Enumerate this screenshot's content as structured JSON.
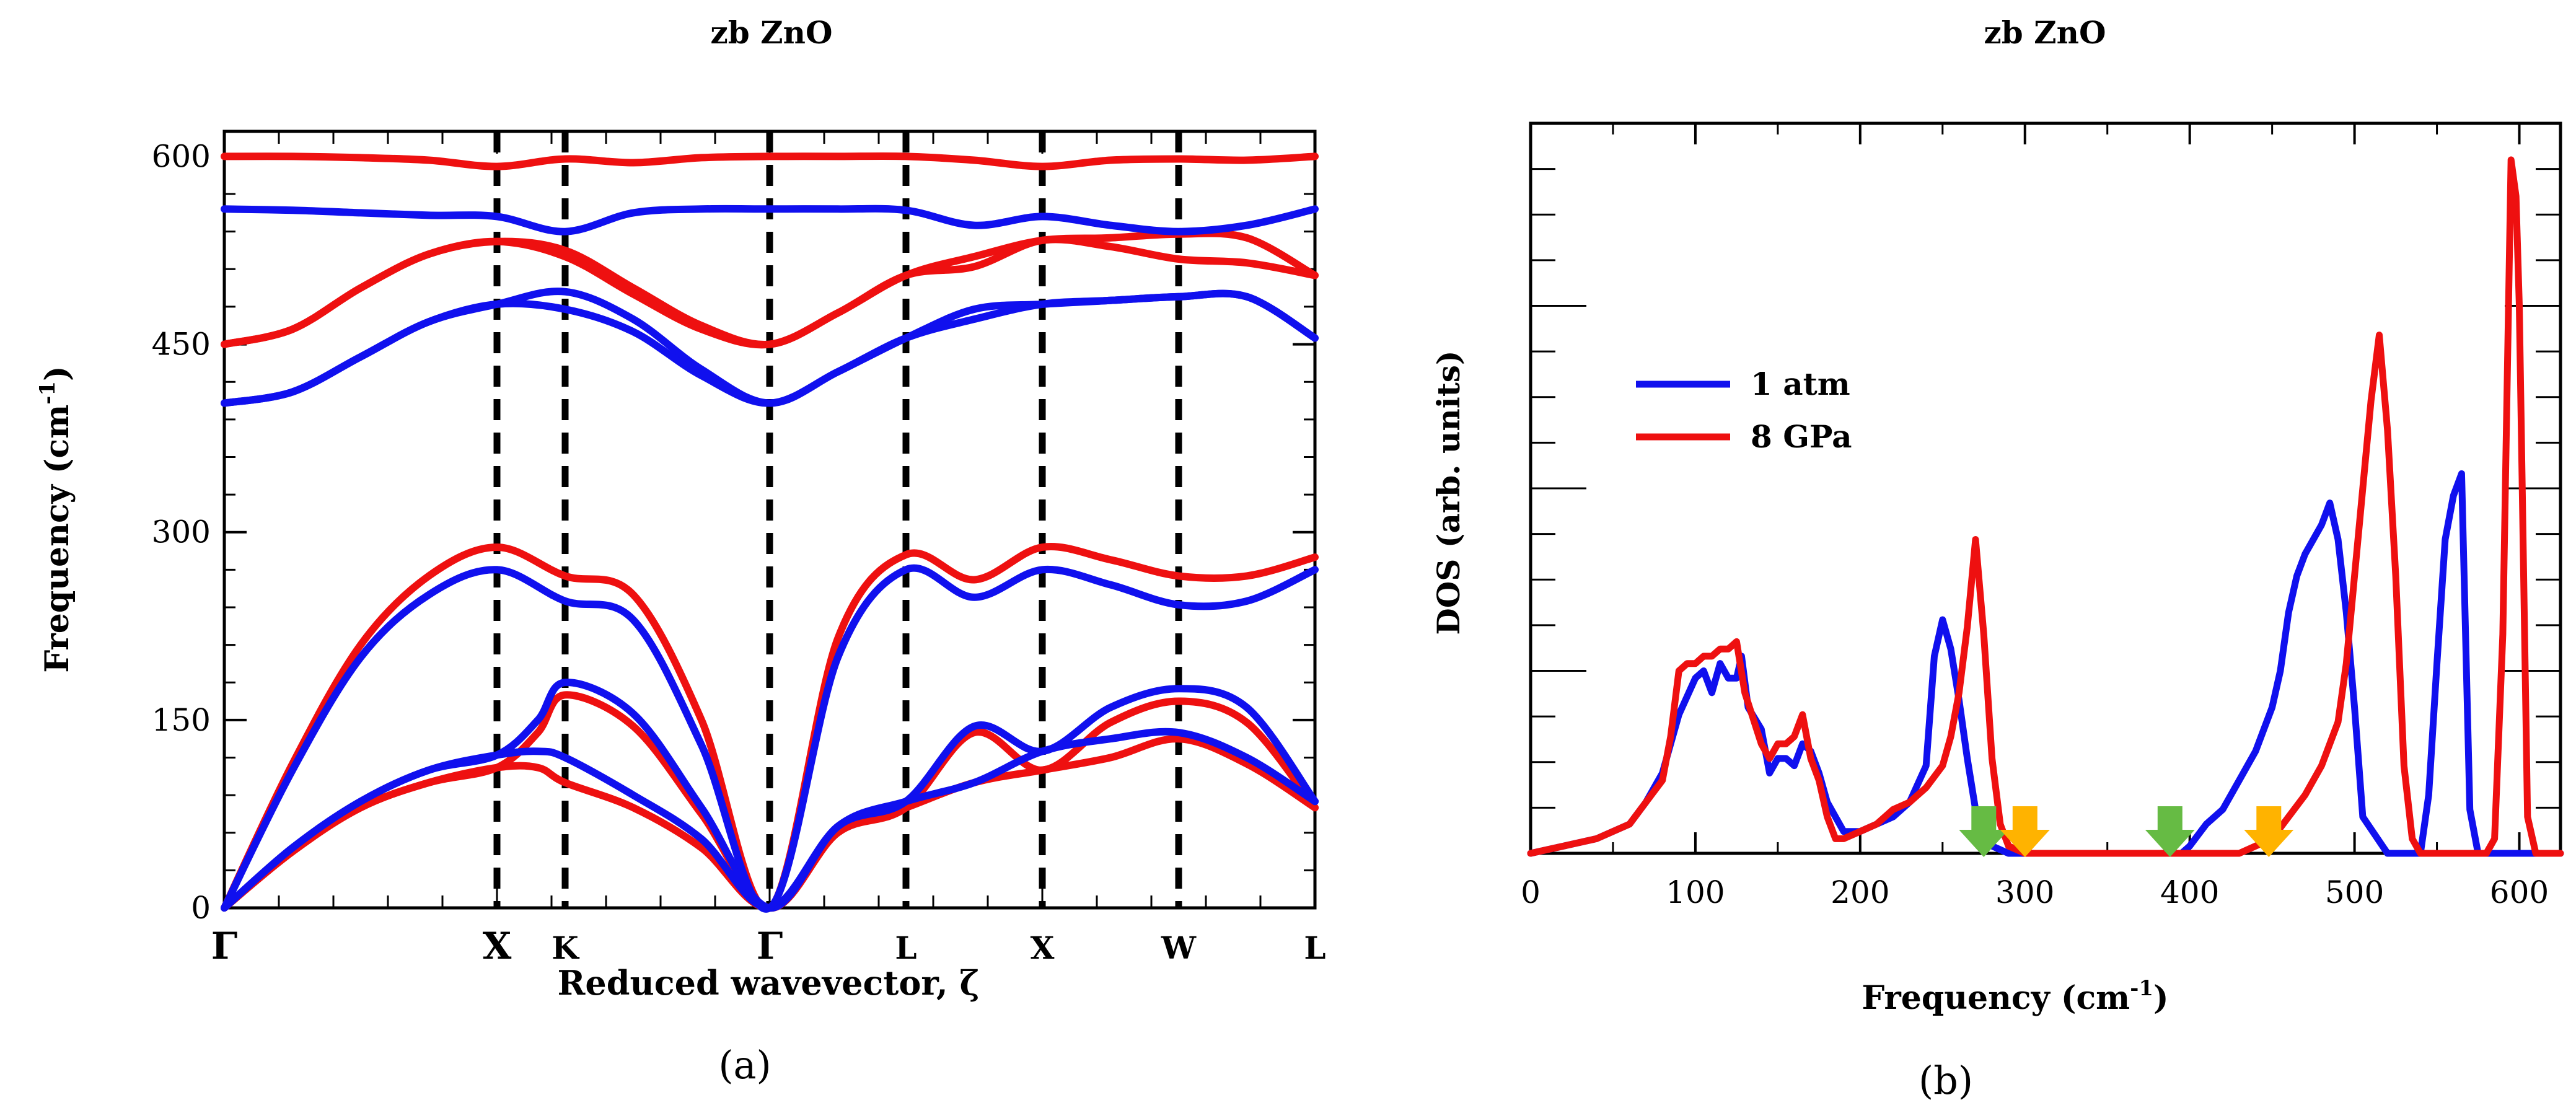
{
  "chart_data": [
    {
      "type": "line",
      "panel_label": "(a)",
      "title": "zb ZnO",
      "xlabel": "Reduced wavevector, ζ",
      "ylabel": "Frequency (cm",
      "ylabel_sup": "-1",
      "ylabel_close": ")",
      "ylim": [
        0,
        620
      ],
      "yticks": [
        {
          "v": 0,
          "label": "0"
        },
        {
          "v": 150,
          "label": "150"
        },
        {
          "v": 300,
          "label": "300"
        },
        {
          "v": 450,
          "label": "450"
        },
        {
          "v": 600,
          "label": "600"
        }
      ],
      "xlim": [
        0,
        8
      ],
      "high_symmetry_points": [
        {
          "label": "Γ",
          "x": 0,
          "dashed": false
        },
        {
          "label": "X",
          "x": 2.0,
          "dashed": true
        },
        {
          "label": "K",
          "x": 2.5,
          "dashed": true
        },
        {
          "label": "Γ",
          "x": 4.0,
          "dashed": true
        },
        {
          "label": "L",
          "x": 5.0,
          "dashed": true
        },
        {
          "label": "X",
          "x": 6.0,
          "dashed": true
        },
        {
          "label": "W",
          "x": 7.0,
          "dashed": true
        },
        {
          "label": "L",
          "x": 8.0,
          "dashed": false
        }
      ],
      "grid": false,
      "series": [
        {
          "name": "1 atm",
          "color": "#1010ee",
          "branches": [
            {
              "x": [
                0,
                0.5,
                1,
                1.5,
                2,
                2.3,
                2.5,
                3,
                3.5,
                4,
                4.5,
                5,
                5.5,
                6,
                6.5,
                7,
                7.5,
                8
              ],
              "y": [
                0,
                48,
                85,
                110,
                122,
                125,
                120,
                90,
                55,
                0,
                65,
                85,
                145,
                125,
                160,
                175,
                160,
                85
              ]
            },
            {
              "x": [
                0,
                0.5,
                1,
                1.5,
                2,
                2.3,
                2.5,
                3,
                3.5,
                4,
                4.5,
                5,
                5.5,
                6,
                6.5,
                7,
                7.5,
                8
              ],
              "y": [
                0,
                48,
                85,
                110,
                122,
                150,
                180,
                155,
                80,
                0,
                65,
                85,
                100,
                125,
                135,
                140,
                120,
                85
              ]
            },
            {
              "x": [
                0,
                0.5,
                1,
                1.5,
                2,
                2.5,
                3,
                3.5,
                4,
                4.5,
                5,
                5.5,
                6,
                6.5,
                7,
                7.5,
                8
              ],
              "y": [
                0,
                110,
                200,
                250,
                270,
                245,
                230,
                130,
                0,
                200,
                270,
                248,
                270,
                258,
                242,
                245,
                270
              ]
            },
            {
              "x": [
                0,
                0.5,
                1,
                1.5,
                2,
                2.5,
                3,
                3.5,
                4,
                4.5,
                5,
                5.5,
                6,
                6.5,
                7,
                7.5,
                8
              ],
              "y": [
                403,
                412,
                440,
                468,
                482,
                492,
                470,
                430,
                403,
                428,
                455,
                478,
                482,
                485,
                488,
                488,
                455
              ]
            },
            {
              "x": [
                0,
                0.5,
                1,
                1.5,
                2,
                2.5,
                3,
                3.5,
                4,
                4.5,
                5,
                5.5,
                6,
                6.5,
                7,
                7.5,
                8
              ],
              "y": [
                403,
                412,
                440,
                468,
                482,
                478,
                460,
                425,
                403,
                428,
                455,
                470,
                482,
                485,
                488,
                488,
                455
              ]
            },
            {
              "x": [
                0,
                0.5,
                1,
                1.5,
                2,
                2.5,
                3,
                3.5,
                4,
                4.5,
                5,
                5.5,
                6,
                6.5,
                7,
                7.5,
                8
              ],
              "y": [
                558,
                557,
                555,
                553,
                552,
                540,
                555,
                558,
                558,
                558,
                557,
                545,
                552,
                545,
                540,
                545,
                558
              ]
            }
          ]
        },
        {
          "name": "8 GPa",
          "color": "#ee1010",
          "branches": [
            {
              "x": [
                0,
                0.5,
                1,
                1.5,
                2,
                2.3,
                2.5,
                3,
                3.5,
                4,
                4.5,
                5,
                5.5,
                6,
                6.5,
                7,
                7.5,
                8
              ],
              "y": [
                0,
                45,
                80,
                100,
                112,
                112,
                100,
                80,
                48,
                0,
                60,
                80,
                100,
                110,
                120,
                135,
                115,
                80
              ]
            },
            {
              "x": [
                0,
                0.5,
                1,
                1.5,
                2,
                2.3,
                2.5,
                3,
                3.5,
                4,
                4.5,
                5,
                5.5,
                6,
                6.5,
                7,
                7.5,
                8
              ],
              "y": [
                0,
                45,
                80,
                100,
                112,
                140,
                170,
                145,
                75,
                0,
                60,
                80,
                140,
                110,
                148,
                165,
                148,
                80
              ]
            },
            {
              "x": [
                0,
                0.5,
                1,
                1.5,
                2,
                2.5,
                3,
                3.5,
                4,
                4.5,
                5,
                5.5,
                6,
                6.5,
                7,
                7.5,
                8
              ],
              "y": [
                0,
                115,
                210,
                265,
                288,
                265,
                250,
                150,
                0,
                215,
                282,
                262,
                288,
                278,
                265,
                265,
                280
              ]
            },
            {
              "x": [
                0,
                0.5,
                1,
                1.5,
                2,
                2.5,
                3,
                3.5,
                4,
                4.5,
                5,
                5.5,
                6,
                6.5,
                7,
                7.5,
                8
              ],
              "y": [
                450,
                462,
                495,
                522,
                532,
                525,
                495,
                465,
                450,
                475,
                505,
                520,
                533,
                535,
                538,
                535,
                505
              ]
            },
            {
              "x": [
                0,
                0.5,
                1,
                1.5,
                2,
                2.5,
                3,
                3.5,
                4,
                4.5,
                5,
                5.5,
                6,
                6.5,
                7,
                7.5,
                8
              ],
              "y": [
                450,
                462,
                495,
                522,
                532,
                520,
                490,
                462,
                450,
                475,
                505,
                512,
                533,
                528,
                518,
                515,
                505
              ]
            },
            {
              "x": [
                0,
                0.5,
                1,
                1.5,
                2,
                2.5,
                3,
                3.5,
                4,
                4.5,
                5,
                5.5,
                6,
                6.5,
                7,
                7.5,
                8
              ],
              "y": [
                600,
                600,
                599,
                597,
                592,
                598,
                595,
                599,
                600,
                600,
                600,
                597,
                592,
                597,
                598,
                597,
                600
              ]
            }
          ]
        }
      ]
    },
    {
      "type": "line",
      "panel_label": "(b)",
      "title": "zb ZnO",
      "xlabel": "Frequency (cm",
      "xlabel_sup": "-1",
      "xlabel_close": ")",
      "ylabel": "DOS (arb. units)",
      "xlim": [
        0,
        625
      ],
      "ylim": [
        0,
        1.0
      ],
      "xticks": [
        {
          "v": 0,
          "label": "0"
        },
        {
          "v": 100,
          "label": "100"
        },
        {
          "v": 200,
          "label": "200"
        },
        {
          "v": 300,
          "label": "300"
        },
        {
          "v": 400,
          "label": "400"
        },
        {
          "v": 500,
          "label": "500"
        },
        {
          "v": 600,
          "label": "600"
        }
      ],
      "legend": {
        "position": "upper-left",
        "entries": [
          "1 atm",
          "8 GPa"
        ]
      },
      "grid": false,
      "series": [
        {
          "name": "1 atm",
          "color": "#1010ee",
          "x": [
            0,
            20,
            40,
            60,
            70,
            80,
            90,
            100,
            105,
            110,
            115,
            120,
            125,
            128,
            132,
            140,
            145,
            150,
            155,
            160,
            165,
            170,
            175,
            180,
            190,
            200,
            210,
            220,
            230,
            240,
            245,
            250,
            255,
            260,
            265,
            270,
            275,
            280,
            290,
            300,
            350,
            395,
            400,
            410,
            420,
            430,
            440,
            450,
            455,
            460,
            465,
            470,
            475,
            480,
            485,
            490,
            495,
            500,
            505,
            520,
            530,
            540,
            545,
            550,
            555,
            560,
            565,
            570,
            575,
            580,
            600,
            625
          ],
          "y": [
            0,
            0.01,
            0.02,
            0.04,
            0.07,
            0.11,
            0.19,
            0.24,
            0.25,
            0.22,
            0.26,
            0.24,
            0.24,
            0.27,
            0.2,
            0.17,
            0.11,
            0.13,
            0.13,
            0.12,
            0.15,
            0.14,
            0.11,
            0.07,
            0.03,
            0.03,
            0.04,
            0.05,
            0.07,
            0.12,
            0.27,
            0.32,
            0.28,
            0.21,
            0.13,
            0.06,
            0.02,
            0.01,
            0.0,
            0.0,
            0.0,
            0.0,
            0.01,
            0.04,
            0.06,
            0.1,
            0.14,
            0.2,
            0.25,
            0.33,
            0.38,
            0.41,
            0.43,
            0.45,
            0.48,
            0.43,
            0.33,
            0.2,
            0.05,
            0.0,
            0.0,
            0.0,
            0.08,
            0.26,
            0.43,
            0.49,
            0.52,
            0.06,
            0.0,
            0.0,
            0.0,
            0.0
          ]
        },
        {
          "name": "8 GPa",
          "color": "#ee1010",
          "x": [
            0,
            20,
            40,
            60,
            70,
            80,
            85,
            90,
            95,
            100,
            105,
            110,
            115,
            120,
            125,
            130,
            140,
            145,
            150,
            155,
            160,
            165,
            170,
            175,
            180,
            185,
            190,
            200,
            210,
            220,
            230,
            240,
            250,
            255,
            260,
            265,
            270,
            275,
            280,
            285,
            290,
            300,
            350,
            430,
            440,
            450,
            460,
            470,
            480,
            490,
            495,
            500,
            505,
            510,
            515,
            520,
            525,
            530,
            535,
            540,
            560,
            580,
            585,
            590,
            595,
            598,
            600,
            605,
            610,
            625
          ],
          "y": [
            0,
            0.01,
            0.02,
            0.04,
            0.07,
            0.1,
            0.16,
            0.25,
            0.26,
            0.26,
            0.27,
            0.27,
            0.28,
            0.28,
            0.29,
            0.22,
            0.15,
            0.13,
            0.15,
            0.15,
            0.16,
            0.19,
            0.13,
            0.1,
            0.05,
            0.02,
            0.02,
            0.03,
            0.04,
            0.06,
            0.07,
            0.09,
            0.12,
            0.16,
            0.22,
            0.31,
            0.43,
            0.3,
            0.13,
            0.04,
            0.01,
            0.0,
            0.0,
            0.0,
            0.01,
            0.02,
            0.05,
            0.08,
            0.12,
            0.18,
            0.26,
            0.38,
            0.5,
            0.62,
            0.71,
            0.58,
            0.38,
            0.12,
            0.02,
            0.0,
            0.0,
            0.0,
            0.02,
            0.3,
            0.95,
            0.9,
            0.75,
            0.05,
            0.0,
            0.0
          ]
        }
      ],
      "arrows": [
        {
          "x": 275,
          "color": "#66bb44"
        },
        {
          "x": 300,
          "color": "#ffb300"
        },
        {
          "x": 388,
          "color": "#66bb44"
        },
        {
          "x": 448,
          "color": "#ffb300"
        }
      ]
    }
  ]
}
